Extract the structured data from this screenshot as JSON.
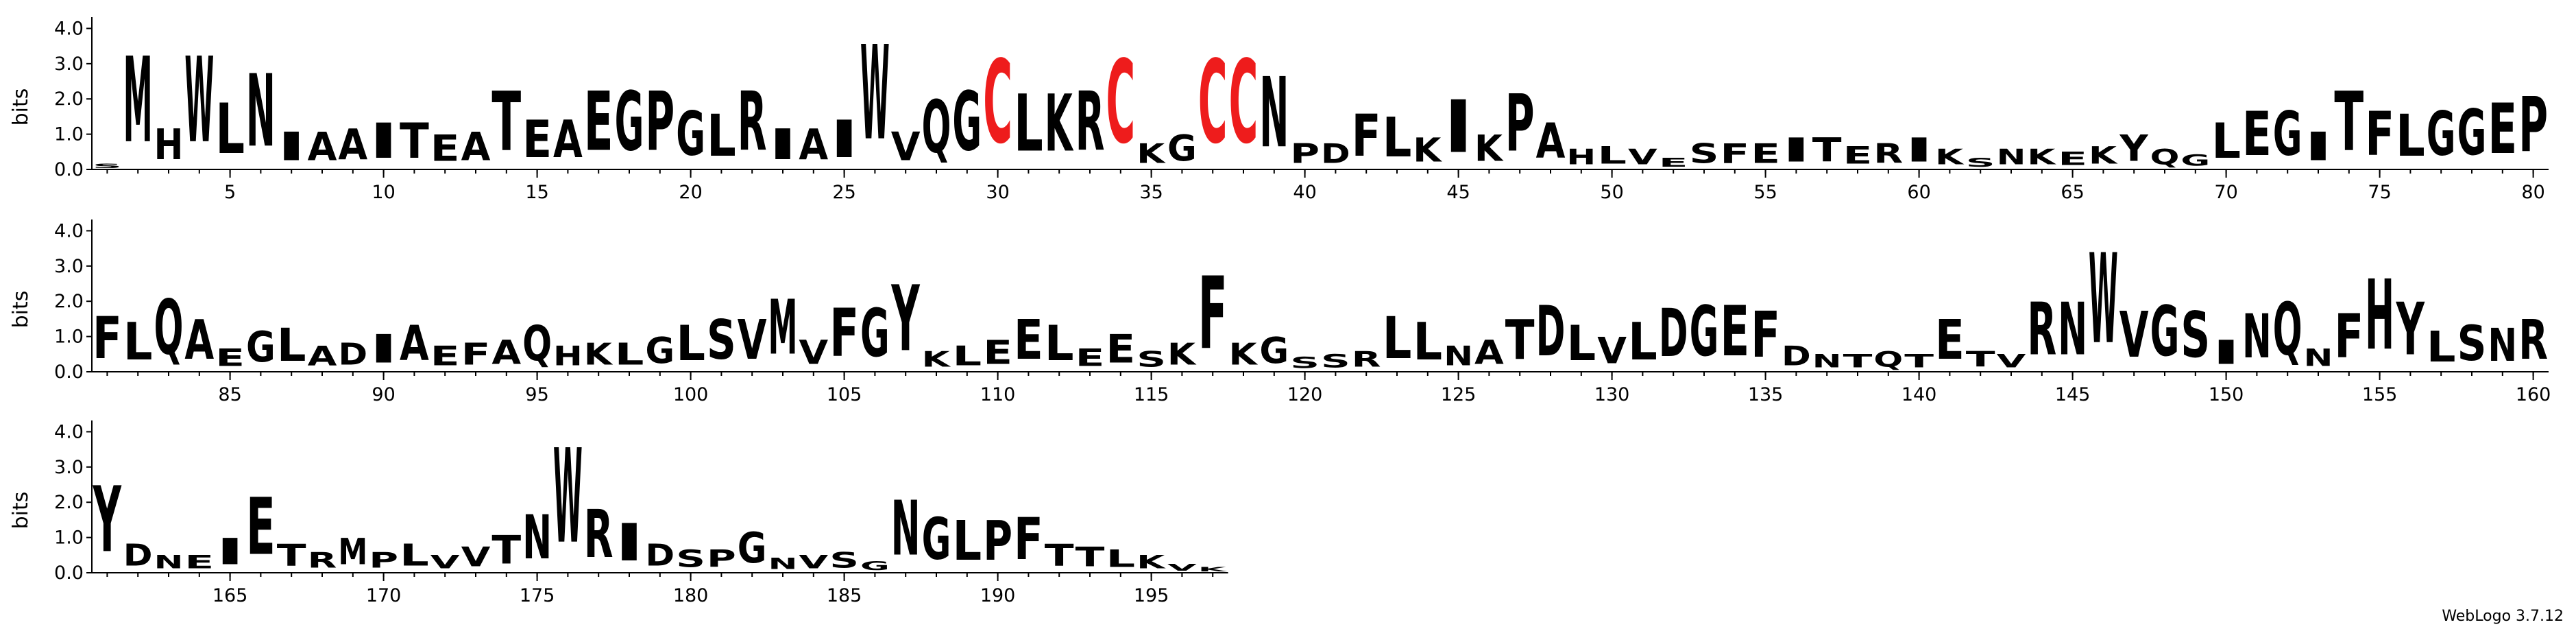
{
  "chart_data": [
    {
      "type": "logo",
      "ylabel": "bits",
      "color": "#000000",
      "letter_colors": {
        "C": "#ee1c1c"
      },
      "ylim": [
        0,
        4.32
      ],
      "yticks": [
        {
          "value": 0,
          "label": "0.0"
        },
        {
          "value": 1,
          "label": "1.0"
        },
        {
          "value": 2,
          "label": "2.0"
        },
        {
          "value": 3,
          "label": "3.0"
        },
        {
          "value": 4,
          "label": "4.0"
        }
      ],
      "xlim": [
        0.5,
        80.5
      ],
      "xticks": [
        5,
        10,
        15,
        20,
        25,
        30,
        35,
        40,
        45,
        50,
        55,
        60,
        65,
        70,
        75,
        80
      ],
      "x": [
        1,
        2,
        3,
        4,
        5,
        6,
        7,
        8,
        9,
        10,
        11,
        12,
        13,
        14,
        15,
        16,
        17,
        18,
        19,
        20,
        21,
        22,
        23,
        24,
        25,
        26,
        27,
        28,
        29,
        30,
        31,
        32,
        33,
        34,
        35,
        36,
        37,
        38,
        39,
        40,
        41,
        42,
        43,
        44,
        45,
        46,
        47,
        48,
        49,
        50,
        51,
        52,
        53,
        54,
        55,
        56,
        57,
        58,
        59,
        60,
        61,
        62,
        63,
        64,
        65,
        66,
        67,
        68,
        69,
        70,
        71,
        72,
        73,
        74,
        75,
        76,
        77,
        78,
        79,
        80
      ],
      "letters": [
        "S",
        "M",
        "H",
        "W",
        "L",
        "N",
        "I",
        "A",
        "A",
        "I",
        "T",
        "E",
        "A",
        "T",
        "E",
        "A",
        "E",
        "G",
        "P",
        "G",
        "L",
        "R",
        "I",
        "A",
        "I",
        "W",
        "V",
        "Q",
        "G",
        "C",
        "L",
        "K",
        "R",
        "C",
        "K",
        "G",
        "C",
        "C",
        "N",
        "P",
        "D",
        "F",
        "L",
        "K",
        "I",
        "K",
        "P",
        "A",
        "H",
        "L",
        "V",
        "E",
        "S",
        "F",
        "E",
        "I",
        "T",
        "E",
        "R",
        "I",
        "K",
        "S",
        "N",
        "K",
        "E",
        "K",
        "Y",
        "Q",
        "G",
        "L",
        "E",
        "G",
        "I",
        "T",
        "F",
        "L",
        "G",
        "G",
        "E",
        "P"
      ],
      "values": [
        0.2,
        3.9,
        1.4,
        3.9,
        2.3,
        3.3,
        1.3,
        1.3,
        1.4,
        1.6,
        1.6,
        1.2,
        1.3,
        2.7,
        1.7,
        1.7,
        2.7,
        2.7,
        2.7,
        2.0,
        1.9,
        2.7,
        1.4,
        1.4,
        1.7,
        4.3,
        1.3,
        2.4,
        2.7,
        3.8,
        2.6,
        2.6,
        2.7,
        3.8,
        0.9,
        1.2,
        3.8,
        3.8,
        3.2,
        0.9,
        0.9,
        1.9,
        1.8,
        1.1,
        2.4,
        1.2,
        2.6,
        1.6,
        0.7,
        0.8,
        0.7,
        0.4,
        0.9,
        0.9,
        0.9,
        1.1,
        1.1,
        0.8,
        0.9,
        1.1,
        0.7,
        0.4,
        0.7,
        0.7,
        0.6,
        0.8,
        1.2,
        0.7,
        0.5,
        1.6,
        2.0,
        2.0,
        1.3,
        2.7,
        2.0,
        1.9,
        2.0,
        2.1,
        2.3,
        2.5
      ]
    },
    {
      "type": "logo",
      "ylabel": "bits",
      "color": "#000000",
      "letter_colors": {
        "C": "#ee1c1c"
      },
      "ylim": [
        0,
        4.32
      ],
      "yticks": [
        {
          "value": 0,
          "label": "0.0"
        },
        {
          "value": 1,
          "label": "1.0"
        },
        {
          "value": 2,
          "label": "2.0"
        },
        {
          "value": 3,
          "label": "3.0"
        },
        {
          "value": 4,
          "label": "4.0"
        }
      ],
      "xlim": [
        80.5,
        160.5
      ],
      "xticks": [
        85,
        90,
        95,
        100,
        105,
        110,
        115,
        120,
        125,
        130,
        135,
        140,
        145,
        150,
        155,
        160
      ],
      "x": [
        81,
        82,
        83,
        84,
        85,
        86,
        87,
        88,
        89,
        90,
        91,
        92,
        93,
        94,
        95,
        96,
        97,
        98,
        99,
        100,
        101,
        102,
        103,
        104,
        105,
        106,
        107,
        108,
        109,
        110,
        111,
        112,
        113,
        114,
        115,
        116,
        117,
        118,
        119,
        120,
        121,
        122,
        123,
        124,
        125,
        126,
        127,
        128,
        129,
        130,
        131,
        132,
        133,
        134,
        135,
        136,
        137,
        138,
        139,
        140,
        141,
        142,
        143,
        144,
        145,
        146,
        147,
        148,
        149,
        150,
        151,
        152,
        153,
        154,
        155,
        156,
        157,
        158,
        159,
        160
      ],
      "letters": [
        "F",
        "L",
        "Q",
        "A",
        "E",
        "G",
        "L",
        "A",
        "D",
        "I",
        "A",
        "E",
        "F",
        "A",
        "Q",
        "H",
        "K",
        "L",
        "G",
        "L",
        "S",
        "V",
        "M",
        "V",
        "F",
        "G",
        "Y",
        "K",
        "L",
        "E",
        "E",
        "L",
        "E",
        "E",
        "S",
        "K",
        "F",
        "K",
        "G",
        "S",
        "S",
        "R",
        "L",
        "L",
        "N",
        "A",
        "T",
        "D",
        "L",
        "V",
        "L",
        "D",
        "G",
        "E",
        "F",
        "D",
        "N",
        "T",
        "Q",
        "T",
        "E",
        "T",
        "V",
        "R",
        "N",
        "W",
        "V",
        "G",
        "S",
        "I",
        "N",
        "Q",
        "N",
        "F",
        "H",
        "Y",
        "L",
        "S",
        "N",
        "R"
      ],
      "values": [
        1.9,
        1.7,
        2.5,
        1.8,
        0.8,
        1.4,
        1.5,
        0.9,
        1.0,
        1.3,
        1.6,
        0.9,
        1.0,
        1.1,
        1.6,
        0.9,
        1.0,
        1.0,
        1.2,
        1.6,
        1.8,
        1.8,
        2.5,
        1.1,
        2.2,
        2.2,
        3.0,
        0.7,
        0.9,
        1.1,
        1.8,
        1.6,
        0.8,
        1.3,
        0.7,
        1.0,
        3.3,
        1.0,
        1.2,
        0.5,
        0.6,
        0.7,
        1.9,
        1.7,
        0.9,
        1.1,
        1.8,
        2.3,
        1.6,
        1.2,
        1.7,
        2.2,
        2.3,
        2.3,
        2.1,
        0.9,
        0.6,
        0.6,
        0.7,
        0.6,
        1.8,
        0.7,
        0.6,
        2.4,
        2.4,
        4.1,
        2.1,
        2.3,
        2.1,
        1.1,
        2.0,
        2.4,
        0.8,
        2.0,
        3.2,
        2.4,
        1.4,
        1.6,
        1.5,
        1.8
      ]
    },
    {
      "type": "logo",
      "ylabel": "bits",
      "color": "#000000",
      "letter_colors": {
        "C": "#ee1c1c"
      },
      "ylim": [
        0,
        4.32
      ],
      "yticks": [
        {
          "value": 0,
          "label": "0.0"
        },
        {
          "value": 1,
          "label": "1.0"
        },
        {
          "value": 2,
          "label": "2.0"
        },
        {
          "value": 3,
          "label": "3.0"
        },
        {
          "value": 4,
          "label": "4.0"
        }
      ],
      "xlim": [
        160.5,
        197.5
      ],
      "xticks": [
        165,
        170,
        175,
        180,
        185,
        190,
        195
      ],
      "x": [
        161,
        162,
        163,
        164,
        165,
        166,
        167,
        168,
        169,
        170,
        171,
        172,
        173,
        174,
        175,
        176,
        177,
        178,
        179,
        180,
        181,
        182,
        183,
        184,
        185,
        186,
        187,
        188,
        189,
        190,
        191,
        192,
        193,
        194,
        195,
        196,
        197
      ],
      "letters": [
        "Y",
        "D",
        "N",
        "E",
        "I",
        "E",
        "T",
        "R",
        "M",
        "P",
        "L",
        "V",
        "V",
        "T",
        "N",
        "W",
        "R",
        "I",
        "D",
        "S",
        "P",
        "G",
        "N",
        "V",
        "S",
        "G",
        "N",
        "G",
        "L",
        "P",
        "F",
        "T",
        "T",
        "L",
        "K",
        "V",
        "K"
      ],
      "values": [
        3.0,
        1.0,
        0.6,
        0.6,
        1.2,
        2.6,
        1.0,
        0.7,
        1.2,
        0.7,
        1.0,
        0.6,
        0.9,
        1.3,
        2.0,
        4.3,
        2.2,
        1.7,
        1.0,
        0.8,
        0.8,
        1.4,
        0.5,
        0.6,
        0.7,
        0.4,
        2.5,
        1.9,
        1.8,
        1.8,
        1.9,
        1.0,
        0.9,
        0.8,
        0.6,
        0.3,
        0.2
      ]
    }
  ],
  "footer": "WebLogo 3.7.12"
}
